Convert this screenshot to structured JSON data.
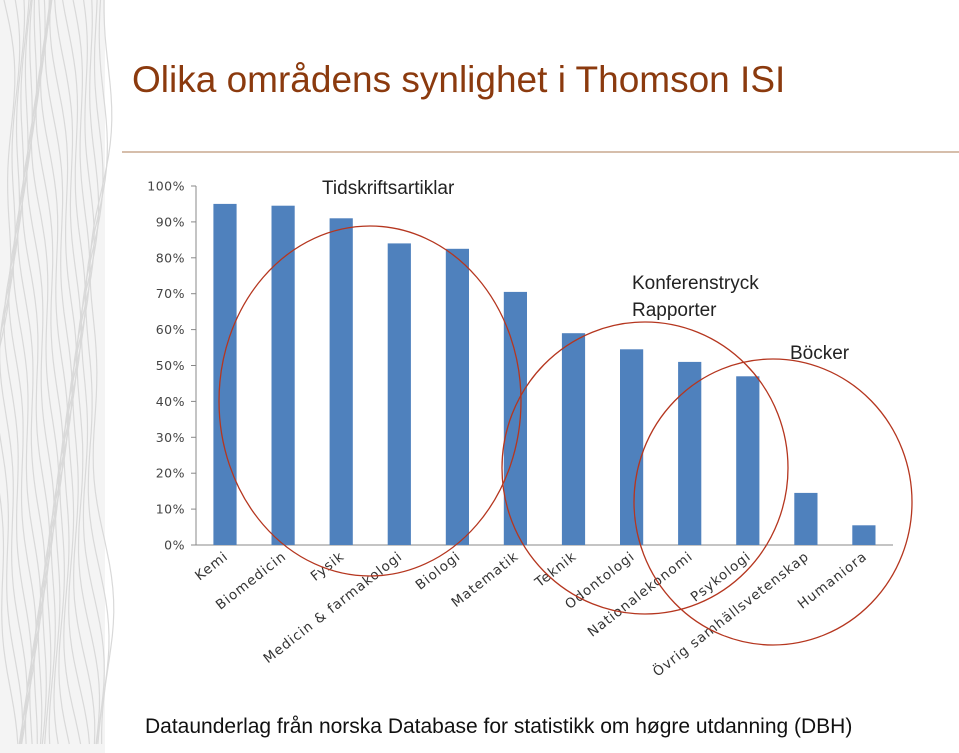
{
  "slide": {
    "title": "Olika områdens synlighet i Thomson ISI",
    "footer": "Dataunderlag från norska Database for statistikk om høgre utdanning (DBH)",
    "title_color": "#8b3a0e",
    "rule_color": "#c9a88f"
  },
  "annotations": {
    "journal_articles": "Tidskriftsartiklar",
    "conference_line1": "Konferenstryck",
    "conference_line2": "Rapporter",
    "books": "Böcker",
    "circle_color": "#b5361f"
  },
  "chart_data": {
    "type": "bar",
    "categories": [
      "Kemi",
      "Biomedicin",
      "Fysik",
      "Medicin & farmakologi",
      "Biologi",
      "Matematik",
      "Teknik",
      "Odontologi",
      "Nationalekonomi",
      "Psykologi",
      "Övrig samhällsvetenskap",
      "Humaniora"
    ],
    "values": [
      95,
      94.5,
      91,
      84,
      82.5,
      70.5,
      59,
      54.5,
      51,
      47,
      14.5,
      5.5
    ],
    "ylim": [
      0,
      100
    ],
    "yticks": [
      "0%",
      "10%",
      "20%",
      "30%",
      "40%",
      "50%",
      "60%",
      "70%",
      "80%",
      "90%",
      "100%"
    ],
    "bar_color": "#4f81bd",
    "grid": false,
    "title": "",
    "xlabel": "",
    "ylabel": ""
  }
}
